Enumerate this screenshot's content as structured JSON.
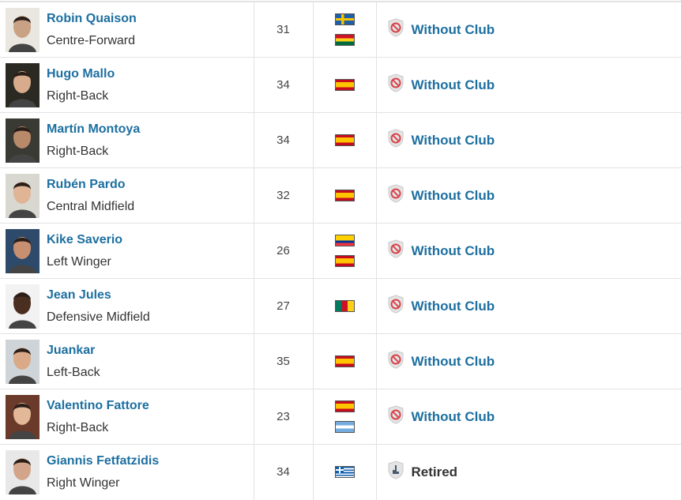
{
  "colors": {
    "link": "#1d6fa0",
    "text": "#333333",
    "border": "#e2e2e2"
  },
  "players": [
    {
      "name": "Robin Quaison",
      "position": "Centre-Forward",
      "age": "31",
      "flags": [
        "SE",
        "GH"
      ],
      "status": "Without Club",
      "status_icon": "no-club-shield-icon",
      "status_link": true
    },
    {
      "name": "Hugo Mallo",
      "position": "Right-Back",
      "age": "34",
      "flags": [
        "ES"
      ],
      "status": "Without Club",
      "status_icon": "no-club-shield-icon",
      "status_link": true
    },
    {
      "name": "Martín Montoya",
      "position": "Right-Back",
      "age": "34",
      "flags": [
        "ES"
      ],
      "status": "Without Club",
      "status_icon": "no-club-shield-icon",
      "status_link": true
    },
    {
      "name": "Rubén Pardo",
      "position": "Central Midfield",
      "age": "32",
      "flags": [
        "ES"
      ],
      "status": "Without Club",
      "status_icon": "no-club-shield-icon",
      "status_link": true
    },
    {
      "name": "Kike Saverio",
      "position": "Left Winger",
      "age": "26",
      "flags": [
        "EC",
        "ES"
      ],
      "status": "Without Club",
      "status_icon": "no-club-shield-icon",
      "status_link": true
    },
    {
      "name": "Jean Jules",
      "position": "Defensive Midfield",
      "age": "27",
      "flags": [
        "CM"
      ],
      "status": "Without Club",
      "status_icon": "no-club-shield-icon",
      "status_link": true
    },
    {
      "name": "Juankar",
      "position": "Left-Back",
      "age": "35",
      "flags": [
        "ES"
      ],
      "status": "Without Club",
      "status_icon": "no-club-shield-icon",
      "status_link": true
    },
    {
      "name": "Valentino Fattore",
      "position": "Right-Back",
      "age": "23",
      "flags": [
        "ES",
        "AR"
      ],
      "status": "Without Club",
      "status_icon": "no-club-shield-icon",
      "status_link": true
    },
    {
      "name": "Giannis Fetfatzidis",
      "position": "Right Winger",
      "age": "34",
      "flags": [
        "GR"
      ],
      "status": "Retired",
      "status_icon": "retired-shield-icon",
      "status_link": false
    }
  ]
}
